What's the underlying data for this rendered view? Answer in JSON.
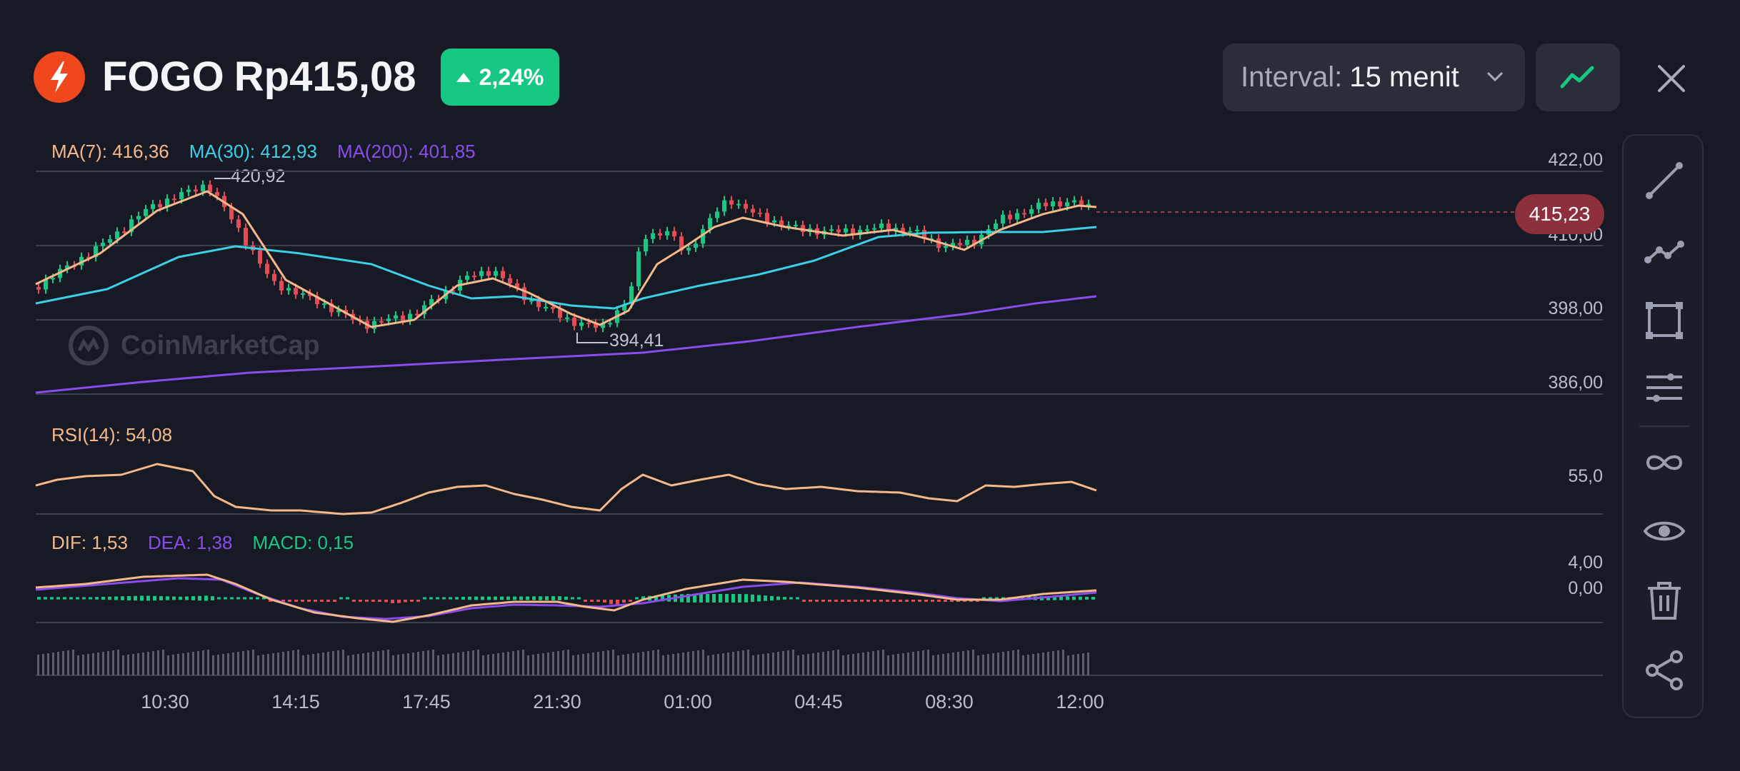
{
  "header": {
    "symbol": "FOGO",
    "price": "Rp415,08",
    "change": "2,24%",
    "interval_label": "Interval:",
    "interval_value": "15 menit"
  },
  "legend_ma": {
    "ma7": "MA(7): 416,36",
    "ma30": "MA(30): 412,93",
    "ma200": "MA(200): 401,85"
  },
  "legend_rsi": "RSI(14): 54,08",
  "legend_macd": {
    "dif": "DIF: 1,53",
    "dea": "DEA: 1,38",
    "macd": "MACD: 0,15"
  },
  "price_axis": [
    "422,00",
    "410,00",
    "398,00",
    "386,00"
  ],
  "rsi_axis": "55,0",
  "macd_axis": [
    "4,00",
    "0,00"
  ],
  "current_price_tag": "415,23",
  "high_label": "420,92",
  "low_label": "394,41",
  "watermark": "CoinMarketCap",
  "time_labels": [
    "10:30",
    "14:15",
    "17:45",
    "21:30",
    "01:00",
    "04:45",
    "08:30",
    "12:00"
  ],
  "colors": {
    "up": "#17c784",
    "down": "#e24c56",
    "ma7": "#f5b88a",
    "ma30": "#3ccfe8",
    "ma200": "#8a4dec",
    "rsi": "#f5b88a",
    "dif": "#f5b88a",
    "dea": "#8a4dec",
    "macd": "#17c784",
    "badge": "#17c784",
    "logo": "#f0471e"
  },
  "toolbar_icons": [
    "trend-line-icon",
    "polyline-icon",
    "rectangle-icon",
    "parallel-lines-icon",
    "infinity-icon",
    "eye-icon",
    "trash-icon",
    "share-icon"
  ]
}
